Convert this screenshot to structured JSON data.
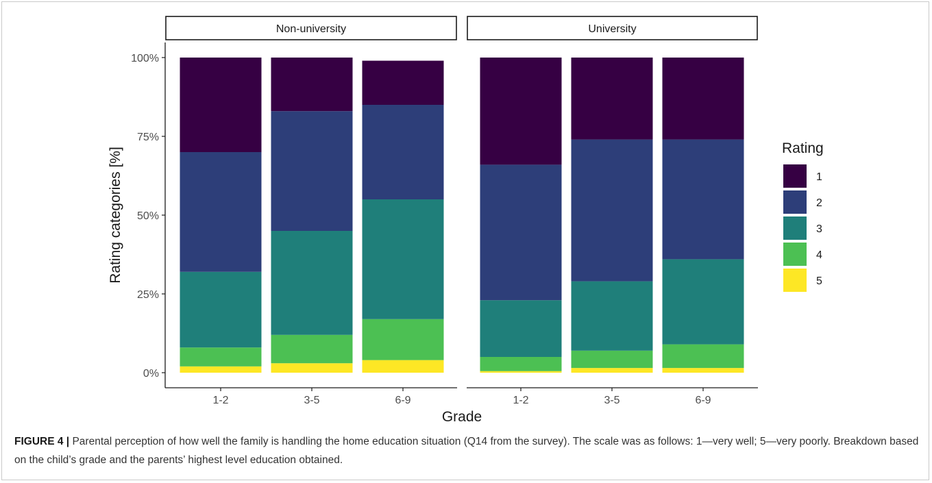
{
  "chart_data": {
    "type": "bar",
    "stacked": true,
    "percent_scale": true,
    "facets": [
      "Non-university",
      "University"
    ],
    "categories": [
      "1-2",
      "3-5",
      "6-9"
    ],
    "xlabel": "Grade",
    "ylabel": "Rating categories [%]",
    "ylim": [
      0,
      100
    ],
    "yticks": [
      "0%",
      "25%",
      "50%",
      "75%",
      "100%"
    ],
    "legend_title": "Rating",
    "legend_position": "right",
    "grid": false,
    "series": [
      {
        "name": "1",
        "color": "#360043",
        "values": {
          "Non-university": [
            30,
            17,
            14
          ],
          "University": [
            34,
            26,
            26
          ]
        }
      },
      {
        "name": "2",
        "color": "#2d3e79",
        "values": {
          "Non-university": [
            38,
            38,
            30
          ],
          "University": [
            43,
            45,
            38
          ]
        }
      },
      {
        "name": "3",
        "color": "#1f7f7a",
        "values": {
          "Non-university": [
            24,
            33,
            38
          ],
          "University": [
            18,
            22,
            27
          ]
        }
      },
      {
        "name": "4",
        "color": "#4cc053",
        "values": {
          "Non-university": [
            6,
            9,
            13
          ],
          "University": [
            4.5,
            5.5,
            7.5
          ]
        }
      },
      {
        "name": "5",
        "color": "#fde725",
        "values": {
          "Non-university": [
            2,
            3,
            4
          ],
          "University": [
            0.5,
            1.5,
            1.5
          ]
        }
      }
    ]
  },
  "caption": {
    "label": "FIGURE 4 |",
    "text": "Parental perception of how well the family is handling the home education situation (Q14 from the survey). The scale was as follows: 1—very well; 5—very poorly. Breakdown based on the child’s grade and the parents’ highest level education obtained."
  }
}
